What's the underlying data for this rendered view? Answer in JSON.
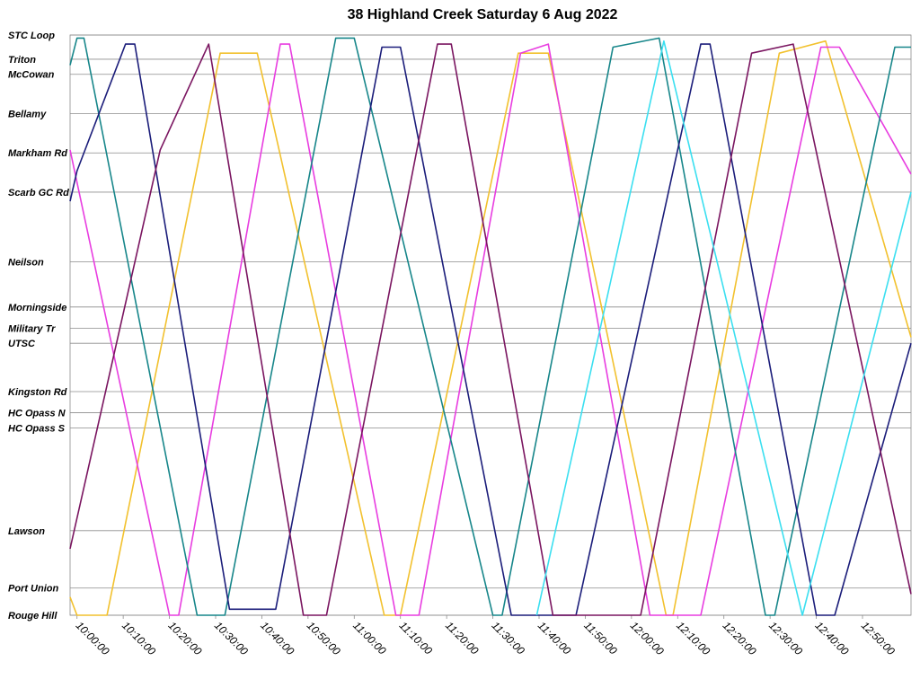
{
  "chart_data": {
    "type": "line",
    "title": "38 Highland Creek Saturday 6 Aug 2022",
    "xlabel": "",
    "ylabel": "",
    "x_unit": "time of day",
    "xlim": [
      "09:58:30",
      "13:00:30"
    ],
    "x_ticks": [
      "10:00:00",
      "10:10:00",
      "10:20:00",
      "10:30:00",
      "10:40:00",
      "10:50:00",
      "11:00:00",
      "11:10:00",
      "11:20:00",
      "11:30:00",
      "11:40:00",
      "11:50:00",
      "12:00:00",
      "12:10:00",
      "12:20:00",
      "12:30:00",
      "12:40:00",
      "12:50:00"
    ],
    "stops": [
      {
        "name": "STC Loop",
        "pos": 0
      },
      {
        "name": "Triton",
        "pos": 0.8
      },
      {
        "name": "McCowan",
        "pos": 1.3
      },
      {
        "name": "Bellamy",
        "pos": 2.6
      },
      {
        "name": "Markham Rd",
        "pos": 3.9
      },
      {
        "name": "Scarb GC Rd",
        "pos": 5.2
      },
      {
        "name": "Neilson",
        "pos": 7.5
      },
      {
        "name": "Morningside",
        "pos": 9.0
      },
      {
        "name": "Military Tr",
        "pos": 9.7
      },
      {
        "name": "UTSC",
        "pos": 10.2
      },
      {
        "name": "Kingston Rd",
        "pos": 11.8
      },
      {
        "name": "HC Opass N",
        "pos": 12.5
      },
      {
        "name": "HC Opass S",
        "pos": 13.0
      },
      {
        "name": "Lawson",
        "pos": 16.4
      },
      {
        "name": "Port Union",
        "pos": 18.3
      },
      {
        "name": "Rouge Hill",
        "pos": 19.2
      }
    ],
    "grid": true,
    "legend": "none",
    "series": [
      {
        "color": "#f2c12e",
        "points": [
          [
            "09:58:30",
            18.6
          ],
          [
            "10:00:00",
            19.2
          ],
          [
            "10:06:30",
            19.2
          ],
          [
            "10:31:00",
            0.6
          ],
          [
            "10:39:00",
            0.6
          ],
          [
            "11:06:30",
            19.2
          ],
          [
            "11:10:00",
            19.2
          ],
          [
            "11:35:30",
            0.6
          ],
          [
            "11:42:00",
            0.6
          ],
          [
            "12:07:30",
            19.2
          ],
          [
            "12:09:00",
            19.2
          ],
          [
            "12:32:00",
            0.6
          ],
          [
            "12:42:00",
            0.2
          ],
          [
            "13:00:30",
            10.0
          ]
        ]
      },
      {
        "color": "#e83de0",
        "points": [
          [
            "09:58:30",
            3.8
          ],
          [
            "10:20:00",
            19.2
          ],
          [
            "10:22:00",
            19.2
          ],
          [
            "10:44:00",
            0.3
          ],
          [
            "10:46:00",
            0.3
          ],
          [
            "11:09:00",
            19.2
          ],
          [
            "11:14:00",
            19.2
          ],
          [
            "11:36:00",
            0.6
          ],
          [
            "11:42:00",
            0.3
          ],
          [
            "12:04:00",
            19.2
          ],
          [
            "12:15:00",
            19.2
          ],
          [
            "12:41:00",
            0.4
          ],
          [
            "12:45:00",
            0.4
          ],
          [
            "13:00:30",
            4.6
          ]
        ]
      },
      {
        "color": "#17868a",
        "points": [
          [
            "09:58:30",
            1.0
          ],
          [
            "10:00:00",
            0.1
          ],
          [
            "10:01:30",
            0.1
          ],
          [
            "10:26:00",
            19.2
          ],
          [
            "10:32:00",
            19.2
          ],
          [
            "10:56:00",
            0.1
          ],
          [
            "11:00:00",
            0.1
          ],
          [
            "11:30:00",
            19.2
          ],
          [
            "11:32:00",
            19.2
          ],
          [
            "11:56:00",
            0.4
          ],
          [
            "12:06:00",
            0.1
          ],
          [
            "12:29:00",
            19.2
          ],
          [
            "12:31:00",
            19.2
          ],
          [
            "12:57:00",
            0.4
          ],
          [
            "13:00:30",
            0.4
          ]
        ]
      },
      {
        "color": "#1b1d7a",
        "points": [
          [
            "09:58:30",
            5.5
          ],
          [
            "10:00:00",
            4.5
          ],
          [
            "10:10:30",
            0.3
          ],
          [
            "10:12:30",
            0.3
          ],
          [
            "10:33:00",
            19.0
          ],
          [
            "10:43:00",
            19.0
          ],
          [
            "11:06:00",
            0.4
          ],
          [
            "11:10:00",
            0.4
          ],
          [
            "11:34:00",
            19.2
          ],
          [
            "11:48:00",
            19.2
          ],
          [
            "12:15:00",
            0.3
          ],
          [
            "12:17:00",
            0.3
          ],
          [
            "12:40:00",
            19.2
          ],
          [
            "12:44:00",
            19.2
          ],
          [
            "13:00:30",
            10.2
          ]
        ]
      },
      {
        "color": "#7a1560",
        "points": [
          [
            "09:58:30",
            17.0
          ],
          [
            "10:18:00",
            3.8
          ],
          [
            "10:28:30",
            0.3
          ],
          [
            "10:49:00",
            19.2
          ],
          [
            "10:54:00",
            19.2
          ],
          [
            "11:18:00",
            0.3
          ],
          [
            "11:21:00",
            0.3
          ],
          [
            "11:43:00",
            19.2
          ],
          [
            "12:02:00",
            19.2
          ],
          [
            "12:26:00",
            0.6
          ],
          [
            "12:35:00",
            0.3
          ],
          [
            "13:00:30",
            18.5
          ]
        ]
      },
      {
        "color": "#3bdff0",
        "points": [
          [
            "11:39:30",
            19.2
          ],
          [
            "12:07:00",
            0.2
          ],
          [
            "12:37:00",
            19.2
          ],
          [
            "13:00:30",
            5.2
          ]
        ]
      }
    ]
  }
}
